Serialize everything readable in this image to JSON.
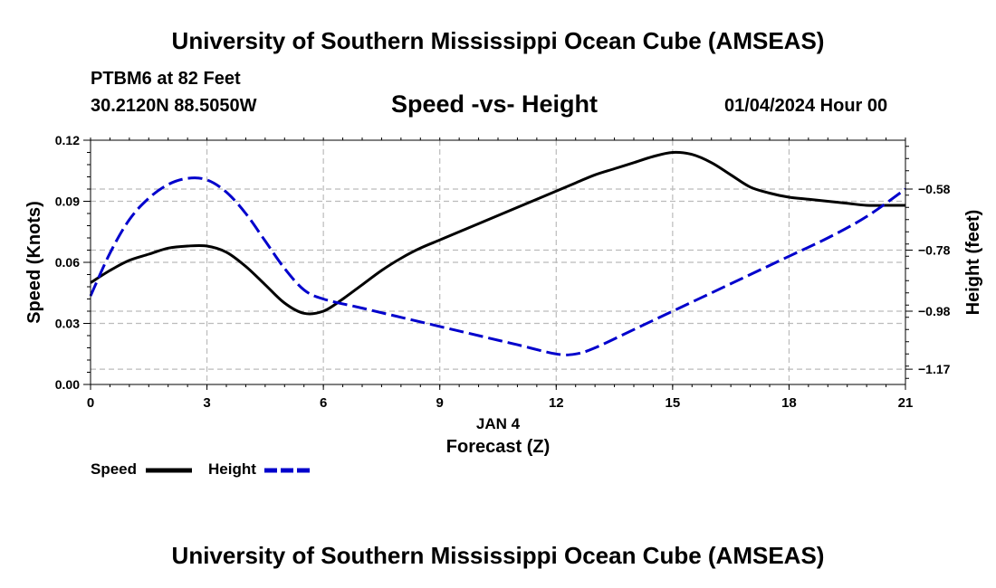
{
  "header": {
    "title": "University of Southern Mississippi Ocean Cube (AMSEAS)",
    "station": "PTBM6 at 82 Feet",
    "coords": "30.2120N  88.5050W",
    "subtitle": "Speed -vs- Height",
    "datetime": "01/04/2024 Hour 00"
  },
  "footer": {
    "title": "University of Southern Mississippi Ocean Cube (AMSEAS)"
  },
  "legend": {
    "speed_label": "Speed",
    "height_label": "Height"
  },
  "colors": {
    "speed": "#000000",
    "height": "#0000cc",
    "grid": "#bbbbbb"
  },
  "chart_data": {
    "type": "line",
    "title": "Speed -vs- Height",
    "xlabel": "Forecast (Z)",
    "xlabel_date": "JAN 4",
    "ylabel": "Speed (Knots)",
    "y2label": "Height (feet)",
    "xlim": [
      0,
      21
    ],
    "ylim": [
      0,
      0.12
    ],
    "y2lim": [
      -1.22,
      -0.42
    ],
    "x_ticks": [
      0,
      3,
      6,
      9,
      12,
      15,
      18,
      21
    ],
    "x_tick_labels": [
      "0",
      "3",
      "6",
      "9",
      "12",
      "15",
      "18",
      "21"
    ],
    "y_ticks": [
      0,
      0.03,
      0.06,
      0.09,
      0.12
    ],
    "y_tick_labels": [
      "0.00",
      "0.03",
      "0.06",
      "0.09",
      "0.12"
    ],
    "y2_ticks": [
      -1.17,
      -0.98,
      -0.78,
      -0.58
    ],
    "y2_tick_labels": [
      "−1.17",
      "−0.98",
      "−0.78",
      "−0.58"
    ],
    "grid": true,
    "series": [
      {
        "name": "Speed",
        "axis": "left",
        "style": "solid",
        "x": [
          0,
          0.5,
          1,
          1.5,
          2,
          2.5,
          3,
          3.5,
          4,
          4.5,
          5,
          5.5,
          6,
          6.5,
          7,
          7.5,
          8,
          8.5,
          9,
          9.5,
          10,
          10.5,
          11,
          11.5,
          12,
          12.5,
          13,
          13.5,
          14,
          14.5,
          15,
          15.5,
          16,
          16.5,
          17,
          17.5,
          18,
          18.5,
          19,
          19.5,
          20,
          20.5,
          21
        ],
        "values": [
          0.05,
          0.056,
          0.061,
          0.064,
          0.067,
          0.068,
          0.068,
          0.065,
          0.058,
          0.049,
          0.04,
          0.035,
          0.036,
          0.042,
          0.049,
          0.056,
          0.062,
          0.067,
          0.071,
          0.075,
          0.079,
          0.083,
          0.087,
          0.091,
          0.095,
          0.099,
          0.103,
          0.106,
          0.109,
          0.112,
          0.114,
          0.113,
          0.109,
          0.103,
          0.097,
          0.094,
          0.092,
          0.091,
          0.09,
          0.089,
          0.088,
          0.088,
          0.088
        ]
      },
      {
        "name": "Height",
        "axis": "right",
        "style": "dashed",
        "x": [
          0,
          0.5,
          1,
          1.5,
          2,
          2.5,
          3,
          3.5,
          4,
          4.5,
          5,
          5.5,
          6,
          7,
          8,
          9,
          10,
          11,
          12,
          12.5,
          13,
          14,
          15,
          16,
          17,
          18,
          19,
          20,
          21
        ],
        "values": [
          -0.93,
          -0.79,
          -0.68,
          -0.61,
          -0.565,
          -0.545,
          -0.55,
          -0.59,
          -0.66,
          -0.75,
          -0.84,
          -0.91,
          -0.94,
          -0.97,
          -1.0,
          -1.03,
          -1.06,
          -1.09,
          -1.12,
          -1.12,
          -1.1,
          -1.04,
          -0.98,
          -0.92,
          -0.86,
          -0.8,
          -0.74,
          -0.67,
          -0.58
        ]
      }
    ]
  }
}
